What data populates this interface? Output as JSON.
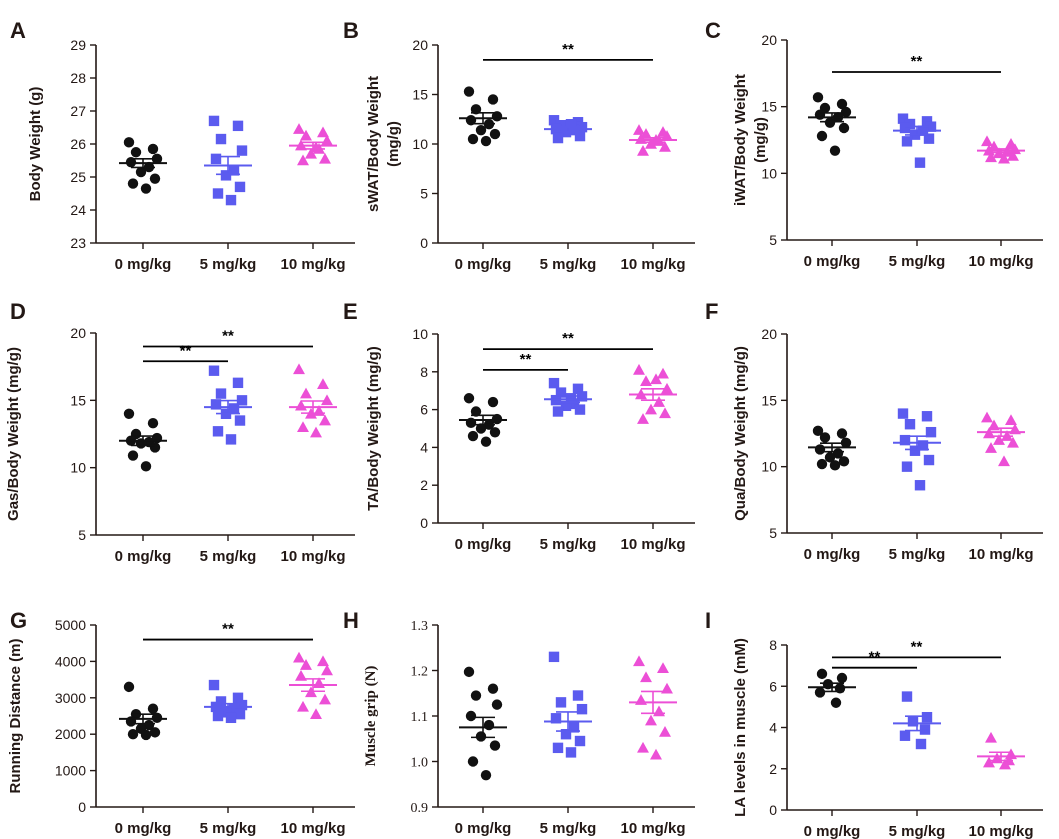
{
  "figure": {
    "colors": {
      "0 mg/kg": "#111111",
      "5 mg/kg": "#5b5bef",
      "10 mg/kg": "#ec4fd6"
    },
    "markers": {
      "0 mg/kg": "circle",
      "5 mg/kg": "square",
      "10 mg/kg": "triangle"
    }
  },
  "chart_data": [
    {
      "panel": "A",
      "type": "scatter",
      "ylabel": "Body Weight (g)",
      "categories": [
        "0 mg/kg",
        "5 mg/kg",
        "10 mg/kg"
      ],
      "ylim": [
        23,
        29
      ],
      "yticks": [
        23,
        24,
        25,
        26,
        27,
        28,
        29
      ],
      "tick_labels": [
        "23",
        "24",
        "25",
        "26",
        "27",
        "28",
        "29"
      ],
      "series": [
        {
          "name": "0 mg/kg",
          "values": [
            26.05,
            25.85,
            25.75,
            25.55,
            25.45,
            25.3,
            25.15,
            24.95,
            24.8,
            24.65
          ],
          "mean": 25.42,
          "sem": 0.13
        },
        {
          "name": "5 mg/kg",
          "values": [
            26.7,
            26.55,
            26.15,
            25.8,
            25.55,
            25.2,
            25.05,
            24.7,
            24.5,
            24.3
          ],
          "mean": 25.35,
          "sem": 0.27
        },
        {
          "name": "10 mg/kg",
          "values": [
            26.45,
            26.35,
            26.25,
            26.1,
            25.95,
            25.85,
            25.7,
            25.55,
            25.5,
            25.9
          ],
          "mean": 25.95,
          "sem": 0.1
        }
      ],
      "significance": []
    },
    {
      "panel": "B",
      "type": "scatter",
      "ylabel": "sWAT/Body Weight (mg/g)",
      "categories": [
        "0 mg/kg",
        "5 mg/kg",
        "10 mg/kg"
      ],
      "ylim": [
        0,
        20
      ],
      "yticks": [
        0,
        5,
        10,
        15,
        20
      ],
      "tick_labels": [
        "0",
        "5",
        "10",
        "15",
        "20"
      ],
      "series": [
        {
          "name": "0 mg/kg",
          "values": [
            15.3,
            14.5,
            13.5,
            12.8,
            12.4,
            12.0,
            11.4,
            11.0,
            10.5,
            10.3
          ],
          "mean": 12.6,
          "sem": 0.55
        },
        {
          "name": "5 mg/kg",
          "values": [
            12.4,
            12.2,
            11.9,
            11.7,
            11.5,
            11.4,
            11.2,
            10.8,
            10.6,
            12.0
          ],
          "mean": 11.5,
          "sem": 0.25
        },
        {
          "name": "10 mg/kg",
          "values": [
            11.4,
            11.2,
            11.0,
            10.8,
            10.5,
            10.3,
            10.0,
            9.7,
            9.3,
            10.4
          ],
          "mean": 10.4,
          "sem": 0.22
        }
      ],
      "significance": [
        {
          "from": 0,
          "to": 2,
          "y": 18.5,
          "label": "**"
        }
      ]
    },
    {
      "panel": "C",
      "type": "scatter",
      "ylabel": "iWAT/Body Weight (mg/g)",
      "categories": [
        "0 mg/kg",
        "5 mg/kg",
        "10 mg/kg"
      ],
      "ylim": [
        5,
        20
      ],
      "yticks": [
        5,
        10,
        15,
        20
      ],
      "tick_labels": [
        "5",
        "10",
        "15",
        "20"
      ],
      "series": [
        {
          "name": "0 mg/kg",
          "values": [
            15.7,
            15.2,
            14.9,
            14.6,
            14.4,
            14.2,
            13.8,
            13.4,
            12.8,
            11.7
          ],
          "mean": 14.2,
          "sem": 0.33
        },
        {
          "name": "5 mg/kg",
          "values": [
            14.1,
            13.9,
            13.7,
            13.5,
            13.4,
            13.2,
            12.9,
            12.6,
            12.4,
            10.8
          ],
          "mean": 13.2,
          "sem": 0.32
        },
        {
          "name": "10 mg/kg",
          "values": [
            12.4,
            12.2,
            12.0,
            11.8,
            11.7,
            11.6,
            11.5,
            11.3,
            11.2,
            11.1
          ],
          "mean": 11.7,
          "sem": 0.13
        }
      ],
      "significance": [
        {
          "from": 0,
          "to": 2,
          "y": 17.6,
          "label": "**"
        }
      ]
    },
    {
      "panel": "D",
      "type": "scatter",
      "ylabel": "Gas/Body Weight (mg/g)",
      "categories": [
        "0 mg/kg",
        "5 mg/kg",
        "10 mg/kg"
      ],
      "ylim": [
        5,
        20
      ],
      "yticks": [
        5,
        10,
        15,
        20
      ],
      "tick_labels": [
        "5",
        "10",
        "15",
        "20"
      ],
      "series": [
        {
          "name": "0 mg/kg",
          "values": [
            14.0,
            13.3,
            12.5,
            12.2,
            12.0,
            11.9,
            11.8,
            11.5,
            10.9,
            10.1
          ],
          "mean": 12.0,
          "sem": 0.35
        },
        {
          "name": "5 mg/kg",
          "values": [
            17.2,
            16.3,
            15.5,
            15.0,
            14.7,
            14.4,
            14.0,
            13.5,
            12.7,
            12.1
          ],
          "mean": 14.5,
          "sem": 0.48
        },
        {
          "name": "10 mg/kg",
          "values": [
            17.3,
            16.2,
            15.5,
            15.0,
            14.6,
            14.2,
            14.0,
            13.5,
            13.0,
            12.6
          ],
          "mean": 14.5,
          "sem": 0.45
        }
      ],
      "significance": [
        {
          "from": 0,
          "to": 1,
          "y": 17.9,
          "label": "**"
        },
        {
          "from": 0,
          "to": 2,
          "y": 19.0,
          "label": "**"
        }
      ]
    },
    {
      "panel": "E",
      "type": "scatter",
      "ylabel": "TA/Body Weight (mg/g)",
      "categories": [
        "0 mg/kg",
        "5 mg/kg",
        "10 mg/kg"
      ],
      "ylim": [
        0,
        10
      ],
      "yticks": [
        0,
        2,
        4,
        6,
        8,
        10
      ],
      "tick_labels": [
        "0",
        "2",
        "4",
        "6",
        "8",
        "10"
      ],
      "series": [
        {
          "name": "0 mg/kg",
          "values": [
            6.6,
            6.4,
            5.9,
            5.5,
            5.3,
            5.2,
            5.0,
            4.8,
            4.6,
            4.3
          ],
          "mean": 5.45,
          "sem": 0.25
        },
        {
          "name": "5 mg/kg",
          "values": [
            7.4,
            7.1,
            6.9,
            6.7,
            6.5,
            6.3,
            6.2,
            6.0,
            5.9,
            6.6
          ],
          "mean": 6.55,
          "sem": 0.17
        },
        {
          "name": "10 mg/kg",
          "values": [
            8.1,
            7.9,
            7.5,
            7.1,
            6.8,
            6.4,
            6.0,
            5.8,
            5.5,
            7.6
          ],
          "mean": 6.8,
          "sem": 0.3
        }
      ],
      "significance": [
        {
          "from": 0,
          "to": 1,
          "y": 8.1,
          "label": "**"
        },
        {
          "from": 0,
          "to": 2,
          "y": 9.2,
          "label": "**"
        }
      ]
    },
    {
      "panel": "F",
      "type": "scatter",
      "ylabel": "Qua/Body Weight (mg/g)",
      "categories": [
        "0 mg/kg",
        "5 mg/kg",
        "10 mg/kg"
      ],
      "ylim": [
        5,
        20
      ],
      "yticks": [
        5,
        10,
        15,
        20
      ],
      "tick_labels": [
        "5",
        "10",
        "15",
        "20"
      ],
      "series": [
        {
          "name": "0 mg/kg",
          "values": [
            12.7,
            12.5,
            12.2,
            11.8,
            11.3,
            11.0,
            10.7,
            10.4,
            10.2,
            10.1
          ],
          "mean": 11.45,
          "sem": 0.32
        },
        {
          "name": "5 mg/kg",
          "values": [
            14.0,
            13.8,
            13.2,
            12.6,
            12.0,
            11.6,
            11.2,
            10.5,
            10.0,
            8.6
          ],
          "mean": 11.8,
          "sem": 0.5
        },
        {
          "name": "10 mg/kg",
          "values": [
            13.7,
            13.5,
            13.1,
            12.8,
            12.5,
            12.3,
            12.0,
            11.8,
            11.4,
            10.4
          ],
          "mean": 12.6,
          "sem": 0.3
        }
      ],
      "significance": []
    },
    {
      "panel": "G",
      "type": "scatter",
      "ylabel": "Running Distance (m)",
      "categories": [
        "0 mg/kg",
        "5 mg/kg",
        "10 mg/kg"
      ],
      "ylim": [
        0,
        5000
      ],
      "yticks": [
        0,
        1000,
        2000,
        3000,
        4000,
        5000
      ],
      "tick_labels": [
        "0",
        "1000",
        "2000",
        "3000",
        "4000",
        "5000"
      ],
      "series": [
        {
          "name": "0 mg/kg",
          "values": [
            3300,
            2700,
            2550,
            2450,
            2350,
            2250,
            2150,
            2050,
            2000,
            1980
          ],
          "mean": 2420,
          "sem": 130
        },
        {
          "name": "5 mg/kg",
          "values": [
            3350,
            3000,
            2900,
            2800,
            2750,
            2700,
            2600,
            2550,
            2500,
            2450
          ],
          "mean": 2750,
          "sem": 90
        },
        {
          "name": "10 mg/kg",
          "values": [
            4100,
            4000,
            3900,
            3750,
            3600,
            3400,
            3150,
            2950,
            2750,
            2550
          ],
          "mean": 3350,
          "sem": 170
        }
      ],
      "significance": [
        {
          "from": 0,
          "to": 2,
          "y": 4600,
          "label": "**"
        }
      ]
    },
    {
      "panel": "H",
      "type": "scatter",
      "ylabel": "Muscle  grip (N)",
      "categories": [
        "0 mg/kg",
        "5 mg/kg",
        "10 mg/kg"
      ],
      "ylim": [
        0.9,
        1.3
      ],
      "yticks": [
        0.9,
        1.0,
        1.1,
        1.2,
        1.3
      ],
      "tick_labels": [
        "0.9",
        "1.0",
        "1.1",
        "1.2",
        "1.3"
      ],
      "series": [
        {
          "name": "0 mg/kg",
          "values": [
            1.197,
            1.16,
            1.145,
            1.125,
            1.1,
            1.08,
            1.055,
            1.035,
            1.0,
            0.97
          ],
          "mean": 1.075,
          "sem": 0.022
        },
        {
          "name": "5 mg/kg",
          "values": [
            1.23,
            1.145,
            1.13,
            1.115,
            1.095,
            1.075,
            1.06,
            1.045,
            1.03,
            1.02
          ],
          "mean": 1.088,
          "sem": 0.021
        },
        {
          "name": "10 mg/kg",
          "values": [
            1.22,
            1.205,
            1.185,
            1.16,
            1.135,
            1.11,
            1.09,
            1.065,
            1.03,
            1.015
          ],
          "mean": 1.13,
          "sem": 0.024
        }
      ],
      "significance": []
    },
    {
      "panel": "I",
      "type": "scatter",
      "ylabel": "LA levels in muscle (mM)",
      "categories": [
        "0 mg/kg",
        "5 mg/kg",
        "10 mg/kg"
      ],
      "ylim": [
        0,
        8
      ],
      "yticks": [
        0,
        2,
        4,
        6,
        8
      ],
      "tick_labels": [
        "0",
        "2",
        "4",
        "6",
        "8"
      ],
      "series": [
        {
          "name": "0 mg/kg",
          "values": [
            6.6,
            6.4,
            6.1,
            5.9,
            5.7,
            5.2
          ],
          "mean": 5.95,
          "sem": 0.2
        },
        {
          "name": "5 mg/kg",
          "values": [
            5.5,
            4.5,
            4.3,
            3.9,
            3.6,
            3.2
          ],
          "mean": 4.2,
          "sem": 0.35
        },
        {
          "name": "10 mg/kg",
          "values": [
            3.5,
            2.7,
            2.5,
            2.4,
            2.3,
            2.2
          ],
          "mean": 2.6,
          "sem": 0.2
        }
      ],
      "significance": [
        {
          "from": 0,
          "to": 1,
          "y": 6.9,
          "label": "**"
        },
        {
          "from": 0,
          "to": 2,
          "y": 7.4,
          "label": "**"
        }
      ]
    }
  ]
}
